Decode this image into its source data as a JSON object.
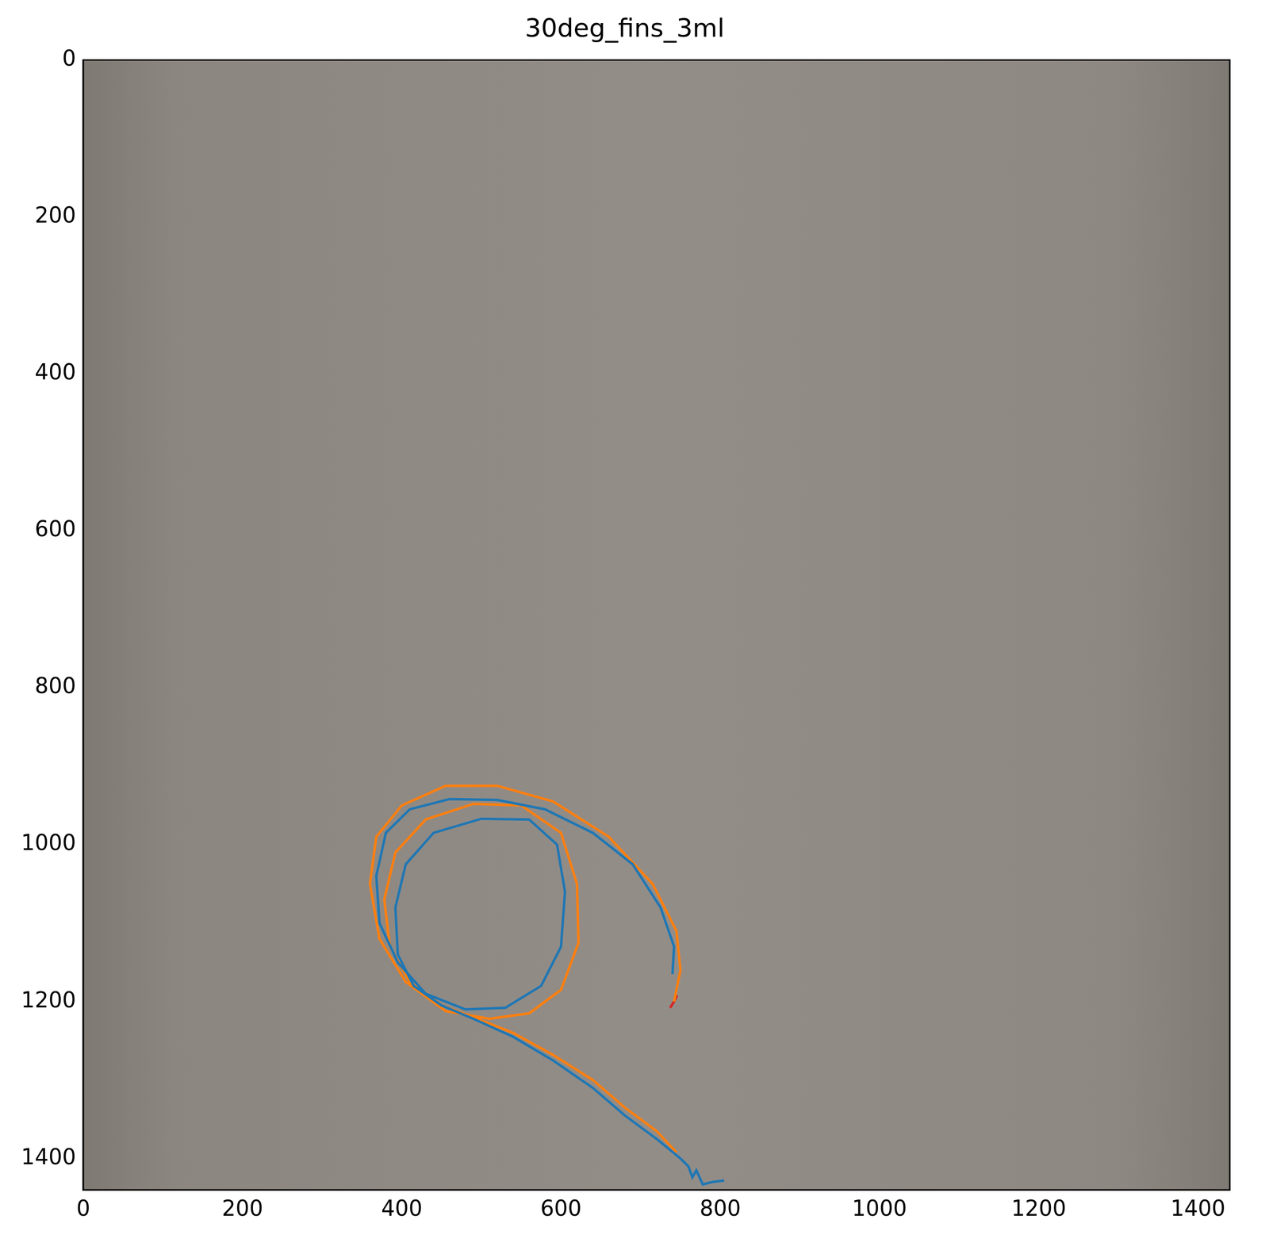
{
  "chart_data": {
    "type": "line",
    "title": "30deg_fins_3ml",
    "xlim": [
      0,
      1440
    ],
    "ylim": [
      0,
      1440
    ],
    "xticks": [
      0,
      200,
      400,
      600,
      800,
      1000,
      1200,
      1400
    ],
    "yticks": [
      0,
      200,
      400,
      600,
      800,
      1000,
      1200,
      1400
    ],
    "grid": false,
    "marker": "none",
    "line_style": "solid",
    "series": [
      {
        "color": "#1f77b4",
        "x": [
          805,
          790,
          778,
          770,
          765,
          760,
          750,
          720,
          680,
          640,
          590,
          540,
          490,
          450,
          415,
          395,
          392,
          405,
          440,
          500,
          560,
          595,
          605,
          600,
          575,
          530,
          480,
          430,
          395,
          372,
          368,
          380,
          410,
          460,
          520,
          580,
          640,
          690,
          725,
          742,
          740
        ],
        "values": [
          1428,
          1430,
          1433,
          1415,
          1424,
          1410,
          1400,
          1375,
          1345,
          1310,
          1275,
          1245,
          1222,
          1205,
          1180,
          1140,
          1080,
          1025,
          985,
          967,
          968,
          1000,
          1060,
          1130,
          1180,
          1208,
          1210,
          1190,
          1150,
          1100,
          1040,
          985,
          955,
          942,
          943,
          955,
          985,
          1025,
          1080,
          1130,
          1165
        ]
      },
      {
        "color": "#ff7f0e",
        "x": [
          745,
          720,
          680,
          640,
          590,
          540,
          490,
          450,
          410,
          385,
          378,
          392,
          430,
          490,
          550,
          600,
          620,
          622,
          600,
          560,
          510,
          455,
          405,
          372,
          360,
          368,
          400,
          455,
          520,
          590,
          660,
          715,
          745,
          750,
          742
        ],
        "values": [
          1392,
          1365,
          1335,
          1300,
          1268,
          1240,
          1220,
          1205,
          1175,
          1130,
          1070,
          1010,
          968,
          948,
          950,
          985,
          1050,
          1125,
          1185,
          1215,
          1222,
          1212,
          1175,
          1120,
          1050,
          990,
          950,
          925,
          925,
          945,
          990,
          1050,
          1110,
          1160,
          1200
        ]
      },
      {
        "color": "#d62728",
        "x": [
          737,
          742,
          746
        ],
        "values": [
          1208,
          1200,
          1192
        ]
      }
    ]
  }
}
